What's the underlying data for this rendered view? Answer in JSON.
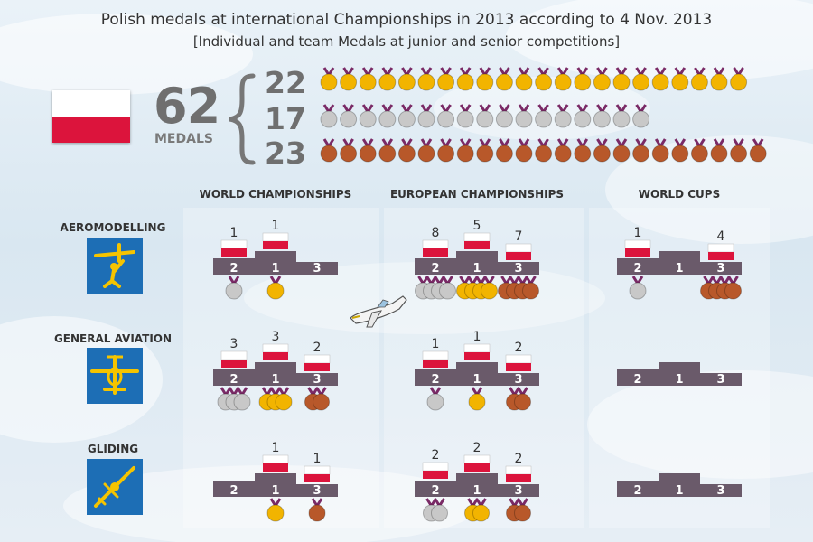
{
  "title": "Polish medals at international Championships in 2013 according to 4 Nov. 2013",
  "subtitle": "[Individual and team Medals at junior and senior competitions]",
  "summary": {
    "total": "62",
    "total_label": "MEDALS",
    "gold": "22",
    "silver": "17",
    "bronze": "23"
  },
  "colors": {
    "gold": "#f2b400",
    "silver": "#c8c8c8",
    "bronze": "#b8582a",
    "ribbon": "#7a2a66",
    "podium": "#6a5a6a",
    "flag_red": "#dc143c",
    "icon_bg": "#1d6eb5",
    "icon_fg": "#f5c400"
  },
  "chart_data": {
    "type": "table",
    "title": "Polish medals at international Championships in 2013 according to 4 Nov. 2013",
    "columns": [
      "WORLD CHAMPIONSHIPS",
      "EUROPEAN CHAMPIONSHIPS",
      "WORLD CUPS"
    ],
    "rows": [
      {
        "name": "AEROMODELLING",
        "icon": "aeromodelling-icon",
        "cells": [
          {
            "silver": 1,
            "gold": 1,
            "bronze": 0
          },
          {
            "silver": 8,
            "gold": 5,
            "bronze": 7
          },
          {
            "silver": 1,
            "gold": 0,
            "bronze": 4
          }
        ]
      },
      {
        "name": "GENERAL AVIATION",
        "icon": "general-aviation-icon",
        "cells": [
          {
            "silver": 3,
            "gold": 3,
            "bronze": 2
          },
          {
            "silver": 1,
            "gold": 1,
            "bronze": 2
          },
          {
            "silver": 0,
            "gold": 0,
            "bronze": 0
          }
        ]
      },
      {
        "name": "GLIDING",
        "icon": "gliding-icon",
        "cells": [
          {
            "silver": 0,
            "gold": 1,
            "bronze": 1
          },
          {
            "silver": 2,
            "gold": 2,
            "bronze": 2
          },
          {
            "silver": 0,
            "gold": 0,
            "bronze": 0
          }
        ]
      }
    ],
    "podium_labels": [
      "2",
      "1",
      "3"
    ],
    "totals": {
      "gold": 22,
      "silver": 17,
      "bronze": 23,
      "all": 62
    }
  }
}
